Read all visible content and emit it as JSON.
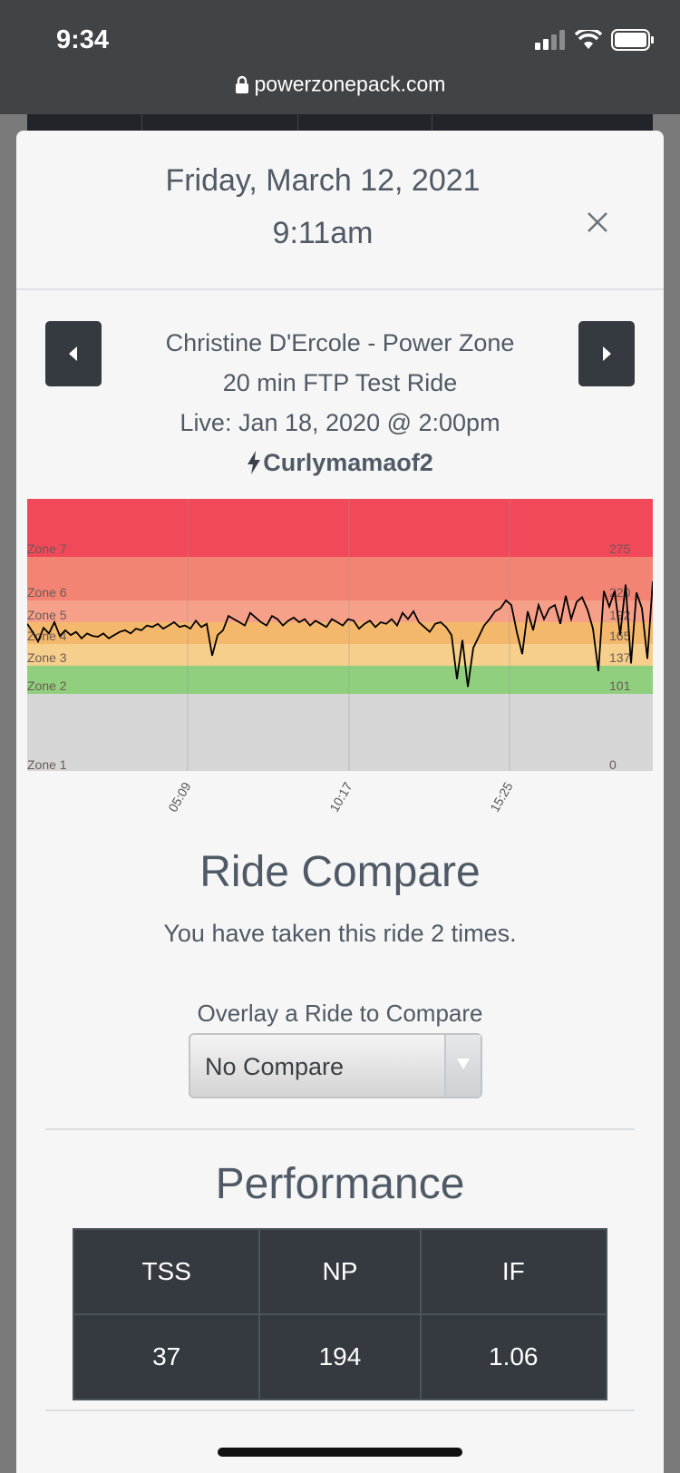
{
  "status_bar": {
    "time": "9:34",
    "url": "powerzonepack.com"
  },
  "header": {
    "date": "Friday, March 12, 2021",
    "time": "9:11am"
  },
  "ride": {
    "instructor_line": "Christine D'Ercole - Power Zone",
    "title": "20 min FTP Test Ride",
    "live": "Live: Jan 18, 2020 @ 2:00pm",
    "user": "Curlymamaof2"
  },
  "chart_data": {
    "type": "line",
    "zones": [
      {
        "name": "Zone 7",
        "threshold": "275",
        "color": "#f1485a"
      },
      {
        "name": "Zone 6",
        "threshold": "220",
        "color": "#f38373"
      },
      {
        "name": "Zone 5",
        "threshold": "192",
        "color": "#f6a08a"
      },
      {
        "name": "Zone 4",
        "threshold": "165",
        "color": "#f4b86c"
      },
      {
        "name": "Zone 3",
        "threshold": "137",
        "color": "#f6cf8d"
      },
      {
        "name": "Zone 2",
        "threshold": "101",
        "color": "#8fcf7e"
      },
      {
        "name": "Zone 1",
        "threshold": "0",
        "color": "#d6d6d6"
      }
    ],
    "x_ticks": [
      "05:09",
      "10:17",
      "15:25"
    ],
    "series": [
      {
        "values": [
          190,
          180,
          168,
          185,
          178,
          192,
          175,
          182,
          176,
          180,
          172,
          178,
          175,
          174,
          178,
          172,
          176,
          180,
          182,
          178,
          184,
          182,
          188,
          186,
          190,
          184,
          188,
          192,
          186,
          188,
          184,
          194,
          186,
          190,
          150,
          176,
          182,
          200,
          196,
          192,
          188,
          204,
          198,
          192,
          188,
          200,
          196,
          188,
          194,
          198,
          192,
          196,
          188,
          194,
          190,
          186,
          196,
          192,
          188,
          196,
          194,
          184,
          190,
          194,
          186,
          192,
          190,
          196,
          188,
          204,
          196,
          206,
          192,
          186,
          180,
          190,
          192,
          186,
          176,
          120,
          170,
          110,
          160,
          174,
          188,
          196,
          206,
          210,
          220,
          214,
          180,
          152,
          206,
          182,
          214,
          196,
          210,
          214,
          190,
          226,
          196,
          218,
          224,
          208,
          184,
          130,
          232,
          212,
          232,
          176,
          240,
          140,
          230,
          210,
          146,
          244
        ]
      }
    ]
  },
  "ride_compare": {
    "title": "Ride Compare",
    "subtitle": "You have taken this ride 2 times.",
    "overlay_label": "Overlay a Ride to Compare",
    "selected": "No Compare"
  },
  "performance": {
    "title": "Performance",
    "headers": [
      "TSS",
      "NP",
      "IF"
    ],
    "values": [
      "37",
      "194",
      "1.06"
    ]
  }
}
